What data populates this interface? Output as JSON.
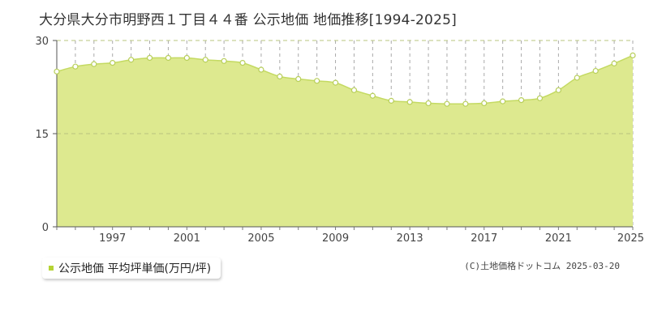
{
  "chart_data": {
    "type": "area",
    "title": "大分県大分市明野西１丁目４４番 公示地価 地価推移[1994-2025]",
    "xlabel": "",
    "ylabel": "",
    "xlim": [
      1994,
      2025
    ],
    "ylim": [
      0,
      30
    ],
    "yticks": [
      0,
      15,
      30
    ],
    "xticks": [
      1997,
      2001,
      2005,
      2009,
      2013,
      2017,
      2021,
      2025
    ],
    "grid": true,
    "legend_position": "bottom-left",
    "series": [
      {
        "name": "公示地価 平均坪単価(万円/坪)",
        "x": [
          1994,
          1995,
          1996,
          1997,
          1998,
          1999,
          2000,
          2001,
          2002,
          2003,
          2004,
          2005,
          2006,
          2007,
          2008,
          2009,
          2010,
          2011,
          2012,
          2013,
          2014,
          2015,
          2016,
          2017,
          2018,
          2019,
          2020,
          2021,
          2022,
          2023,
          2024,
          2025
        ],
        "values": [
          25.0,
          25.8,
          26.2,
          26.4,
          26.9,
          27.2,
          27.2,
          27.2,
          26.9,
          26.7,
          26.4,
          25.3,
          24.2,
          23.8,
          23.5,
          23.2,
          22.0,
          21.1,
          20.3,
          20.1,
          19.9,
          19.8,
          19.8,
          19.9,
          20.2,
          20.4,
          20.7,
          22.0,
          24.0,
          25.1,
          26.3,
          27.6
        ]
      }
    ]
  },
  "colors": {
    "fill": "#dde98f",
    "line": "#c4da62",
    "marker_stroke": "#b8cf5a",
    "marker_fill": "#ffffff",
    "legend_swatch": "#b5d334",
    "grid_x": "#aaaaaa",
    "grid_y": "#b9c47f"
  },
  "legend": {
    "label": "公示地価 平均坪単価(万円/坪)"
  },
  "copyright": "(C)土地価格ドットコム 2025-03-20"
}
